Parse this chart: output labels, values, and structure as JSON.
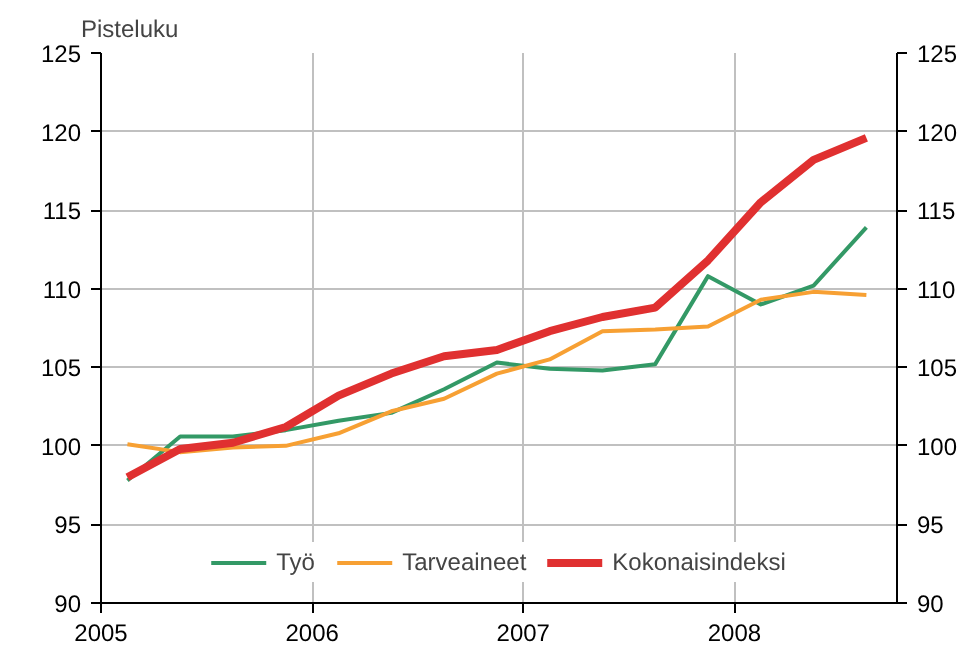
{
  "chart_data": {
    "type": "line",
    "ylabel": "Pisteluku",
    "x": [
      2005.125,
      2005.375,
      2005.625,
      2005.875,
      2006.125,
      2006.375,
      2006.625,
      2006.875,
      2007.125,
      2007.375,
      2007.625,
      2007.875,
      2008.125,
      2008.375,
      2008.625
    ],
    "series": [
      {
        "name": "Työ",
        "color": "#339966",
        "values": [
          97.8,
          100.6,
          100.6,
          101.0,
          101.6,
          102.1,
          103.6,
          105.3,
          104.9,
          104.8,
          105.2,
          110.8,
          109.0,
          110.2,
          113.9
        ]
      },
      {
        "name": "Tarveaineet",
        "color": "#f7a033",
        "values": [
          100.1,
          99.6,
          99.9,
          100.0,
          100.8,
          102.2,
          103.0,
          104.6,
          105.5,
          107.3,
          107.4,
          107.6,
          109.3,
          109.8,
          109.6
        ]
      },
      {
        "name": "Kokonaisindeksi",
        "color": "#e03030",
        "values": [
          98.0,
          99.8,
          100.2,
          101.2,
          103.2,
          104.6,
          105.7,
          106.1,
          107.3,
          108.2,
          108.8,
          111.8,
          115.5,
          118.2,
          119.6
        ]
      }
    ],
    "xlim": [
      2005,
      2008.77
    ],
    "xticks": [
      2005,
      2006,
      2007,
      2008
    ],
    "ylim": [
      90,
      125
    ],
    "yticks": [
      90,
      95,
      100,
      105,
      110,
      115,
      120,
      125
    ],
    "y2lim": [
      90,
      125
    ],
    "y2ticks": [
      90,
      95,
      100,
      105,
      110,
      115,
      120,
      125
    ],
    "grid": true,
    "legend": "bottom",
    "marker": "none",
    "line_style": "solid"
  }
}
